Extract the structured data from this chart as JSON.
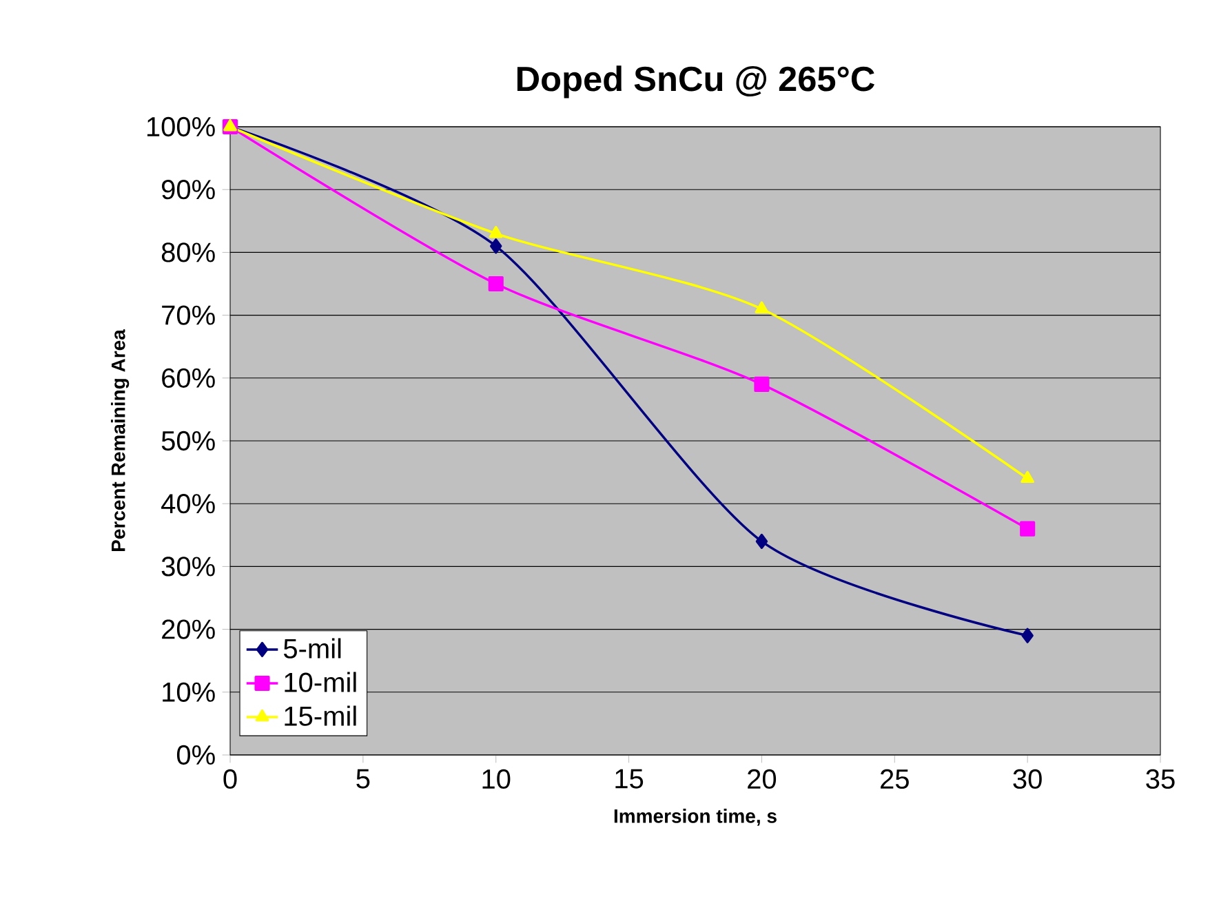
{
  "chart_data": {
    "type": "line",
    "title": "Doped SnCu @ 265°C",
    "xlabel": "Immersion time, s",
    "ylabel": "Percent Remaining Area",
    "x": [
      0,
      10,
      20,
      30
    ],
    "series": [
      {
        "name": "5-mil",
        "color": "#000080",
        "marker": "diamond",
        "values": [
          100,
          81,
          34,
          19
        ]
      },
      {
        "name": "10-mil",
        "color": "#ff00ff",
        "marker": "square",
        "values": [
          100,
          75,
          59,
          36
        ]
      },
      {
        "name": "15-mil",
        "color": "#ffff00",
        "marker": "triangle",
        "values": [
          100,
          83,
          71,
          44
        ]
      }
    ],
    "xlim": [
      0,
      35
    ],
    "xticks": [
      0,
      5,
      10,
      15,
      20,
      25,
      30,
      35
    ],
    "ylim": [
      0,
      100
    ],
    "yticks": [
      {
        "value": 0,
        "label": "0%"
      },
      {
        "value": 10,
        "label": "10%"
      },
      {
        "value": 20,
        "label": "20%"
      },
      {
        "value": 30,
        "label": "30%"
      },
      {
        "value": 40,
        "label": "40%"
      },
      {
        "value": 50,
        "label": "50%"
      },
      {
        "value": 60,
        "label": "60%"
      },
      {
        "value": 70,
        "label": "70%"
      },
      {
        "value": 80,
        "label": "80%"
      },
      {
        "value": 90,
        "label": "90%"
      },
      {
        "value": 100,
        "label": "100%"
      }
    ],
    "grid": "y",
    "legend": "bottom left",
    "line_style": "solid"
  }
}
